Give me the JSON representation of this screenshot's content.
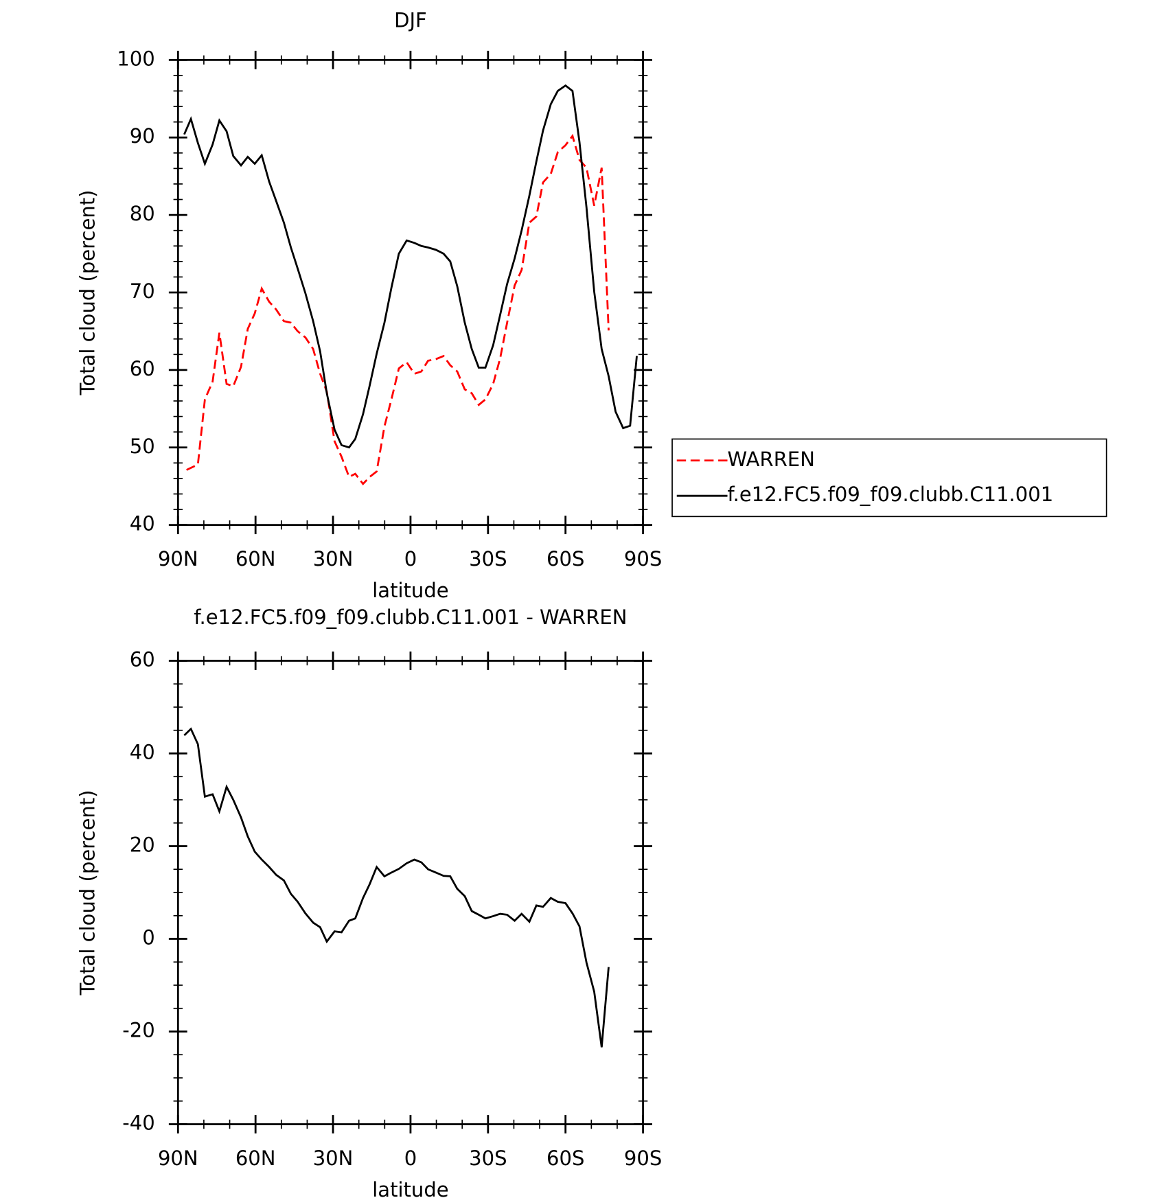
{
  "chart_data": [
    {
      "type": "line",
      "title": "DJF",
      "xlabel": "latitude",
      "ylabel": "Total cloud (percent)",
      "xlim": [
        90,
        -90
      ],
      "xticks": [
        {
          "value": 90,
          "label": "90N"
        },
        {
          "value": 60,
          "label": "60N"
        },
        {
          "value": 30,
          "label": "30N"
        },
        0,
        {
          "value": -30,
          "label": "30S"
        },
        {
          "value": -60,
          "label": "60S"
        },
        {
          "value": -90,
          "label": "90S"
        }
      ],
      "ylim": [
        40,
        100
      ],
      "yticks": [
        40,
        50,
        60,
        70,
        80,
        90,
        100
      ],
      "legend": "right",
      "series": [
        {
          "name": "WARREN",
          "color": "#ff0000",
          "line_style": "dashed",
          "x": [
            86.7,
            82.3,
            79.6,
            76.6,
            74,
            71.2,
            68.6,
            65.6,
            63,
            60.3,
            57.6,
            54.7,
            52,
            49,
            46.3,
            43.7,
            40.7,
            37.7,
            35,
            32.4,
            29.4,
            26.7,
            23.8,
            21.4,
            18.4,
            15.8,
            13.1,
            10.1,
            7.4,
            4.5,
            1.5,
            -1.5,
            -4.2,
            -6.8,
            -9.8,
            -12.8,
            -15.4,
            -18.1,
            -21,
            -23.7,
            -26.4,
            -29,
            -32,
            -34.7,
            -37.4,
            -40.3,
            -43,
            -46,
            -48.7,
            -51.3,
            -54.3,
            -57,
            -60,
            -62.7,
            -65.4,
            -68.1,
            -71.1,
            -74,
            -76.7
          ],
          "values": [
            47.1,
            47.8,
            56.2,
            58.5,
            64.8,
            58.2,
            57.9,
            60.4,
            65.3,
            67.3,
            70.5,
            68.8,
            67.8,
            66.3,
            66.1,
            65,
            64.2,
            62.7,
            59.5,
            57.2,
            50.8,
            48.8,
            46.2,
            46.6,
            45.3,
            46.2,
            46.9,
            52.7,
            56.2,
            60.2,
            61,
            59.5,
            59.8,
            61.2,
            61.4,
            61.8,
            60.6,
            59.8,
            57.5,
            57,
            55.5,
            56.2,
            58.2,
            61.5,
            66.1,
            70.9,
            72.9,
            79,
            79.8,
            84.2,
            85.3,
            88.1,
            89,
            90.2,
            87.1,
            86.1,
            81.2,
            86.1,
            65.1
          ]
        },
        {
          "name": "f.e12.FC5.f09_f09.clubb.C11.001",
          "color": "#000000",
          "line_style": "solid",
          "x": [
            87.6,
            85,
            82.3,
            79.6,
            76.6,
            74,
            71.2,
            68.6,
            65.6,
            63,
            60.3,
            57.6,
            54.7,
            52,
            49,
            46.3,
            43.7,
            40.7,
            37.7,
            35,
            32.4,
            29.4,
            26.7,
            23.8,
            21.4,
            18.4,
            15.8,
            13.1,
            10.1,
            7.4,
            4.5,
            1.5,
            -1.5,
            -4.2,
            -6.8,
            -9.8,
            -12.8,
            -15.4,
            -18.1,
            -21,
            -23.7,
            -26.4,
            -29,
            -32,
            -34.7,
            -37.4,
            -40.3,
            -43,
            -46,
            -48.7,
            -51.3,
            -54.3,
            -57,
            -60,
            -62.7,
            -65.4,
            -68.1,
            -71.1,
            -74,
            -76.7,
            -79.4,
            -82.3,
            -85,
            -87.6
          ],
          "values": [
            90.4,
            92.4,
            89.3,
            86.6,
            89.1,
            92.2,
            90.8,
            87.6,
            86.4,
            87.5,
            86.6,
            87.7,
            84.3,
            81.8,
            79,
            75.8,
            73.1,
            69.9,
            66.3,
            62.4,
            57,
            52.3,
            50.3,
            50,
            51.1,
            54.3,
            58,
            62.1,
            66.1,
            70.6,
            75,
            76.7,
            76.4,
            76,
            75.8,
            75.5,
            75,
            74,
            70.8,
            66.1,
            62.7,
            60.3,
            60.3,
            63.2,
            67.1,
            71.1,
            74.4,
            78,
            82.5,
            86.9,
            90.9,
            94.3,
            96,
            96.7,
            96,
            89.4,
            81,
            70.1,
            62.7,
            59.2,
            54.6,
            52.5,
            52.8,
            61.8
          ]
        }
      ]
    },
    {
      "type": "line",
      "title": "f.e12.FC5.f09_f09.clubb.C11.001 - WARREN",
      "xlabel": "latitude",
      "ylabel": "Total cloud (percent)",
      "xlim": [
        90,
        -90
      ],
      "xticks": [
        {
          "value": 90,
          "label": "90N"
        },
        {
          "value": 60,
          "label": "60N"
        },
        {
          "value": 30,
          "label": "30N"
        },
        0,
        {
          "value": -30,
          "label": "30S"
        },
        {
          "value": -60,
          "label": "60S"
        },
        {
          "value": -90,
          "label": "90S"
        }
      ],
      "ylim": [
        -40,
        60
      ],
      "yticks": [
        -40,
        -20,
        0,
        20,
        40,
        60
      ],
      "series": [
        {
          "color": "#000000",
          "line_style": "solid",
          "x": [
            87.6,
            85,
            82.3,
            79.6,
            76.6,
            74,
            71.2,
            68.6,
            65.6,
            63,
            60.3,
            57.6,
            54.7,
            52,
            49,
            46.3,
            43.7,
            40.7,
            37.7,
            35,
            32.4,
            29.4,
            26.7,
            23.8,
            21.4,
            18.4,
            15.8,
            13.1,
            10.1,
            7.4,
            4.5,
            1.5,
            -1.5,
            -4.2,
            -6.8,
            -9.8,
            -12.8,
            -15.4,
            -18.1,
            -21,
            -23.7,
            -26.4,
            -29,
            -32,
            -34.7,
            -37.4,
            -40.3,
            -43,
            -46,
            -48.7,
            -51.3,
            -54.3,
            -57,
            -60,
            -62.7,
            -65.4,
            -68.1,
            -71.1,
            -74,
            -76.7
          ],
          "values": [
            43.9,
            45.3,
            42,
            30.7,
            31.2,
            27.5,
            32.8,
            30,
            26.2,
            22.1,
            18.8,
            17.1,
            15.5,
            13.8,
            12.6,
            9.7,
            8,
            5.5,
            3.5,
            2.5,
            -0.6,
            1.6,
            1.4,
            3.9,
            4.4,
            8.8,
            11.8,
            15.5,
            13.5,
            14.3,
            15.1,
            16.3,
            17.1,
            16.5,
            15,
            14.3,
            13.6,
            13.5,
            10.8,
            9.2,
            6,
            5.2,
            4.4,
            4.9,
            5.4,
            5.2,
            3.9,
            5.4,
            3.7,
            7.2,
            6.9,
            8.8,
            8,
            7.7,
            5.5,
            2.7,
            -5.1,
            -11.4,
            -23.4,
            -6.1
          ]
        }
      ]
    }
  ]
}
